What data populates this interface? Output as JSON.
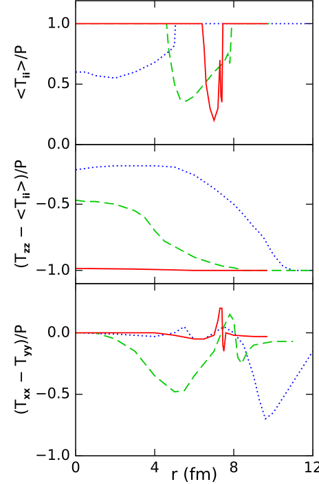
{
  "chart_data": [
    {
      "type": "line",
      "ylabel": [
        "<T",
        "ii",
        ">/P"
      ],
      "xlim": [
        0,
        12
      ],
      "xticks": [
        0,
        4,
        8,
        12
      ],
      "ylim": [
        0,
        1.19
      ],
      "yticks": [
        {
          "value": 1,
          "label": "1.0"
        },
        {
          "value": 0.5,
          "label": "0.5"
        },
        {
          "value": 0,
          "label": "0.0"
        }
      ],
      "series": [
        {
          "color": "#0000ff",
          "style": "dotted",
          "x": [
            0,
            0.5,
            1,
            2,
            3,
            4,
            4.8,
            5,
            5.05,
            8,
            12
          ],
          "values": [
            0.6,
            0.6,
            0.57,
            0.55,
            0.6,
            0.68,
            0.78,
            0.82,
            1.0,
            1.0,
            1.0
          ]
        },
        {
          "color": "#00cc00",
          "style": "dashed",
          "x": [
            0,
            4.6,
            4.7,
            5,
            5.3,
            5.6,
            6,
            6.5,
            7,
            7.5,
            7.7,
            7.8,
            7.9,
            9.8
          ],
          "values": [
            1.0,
            1.0,
            0.8,
            0.5,
            0.37,
            0.36,
            0.4,
            0.5,
            0.6,
            0.68,
            0.75,
            0.67,
            1.0,
            1.0
          ]
        },
        {
          "color": "#ff0000",
          "style": "solid",
          "x": [
            0,
            6.4,
            6.5,
            6.6,
            6.8,
            7.0,
            7.2,
            7.3,
            7.35,
            7.4,
            7.45,
            9.7
          ],
          "values": [
            1.0,
            1.0,
            0.8,
            0.5,
            0.3,
            0.2,
            0.3,
            0.7,
            0.4,
            0.35,
            1.0,
            1.0
          ]
        }
      ]
    },
    {
      "type": "line",
      "ylabel": [
        "(T",
        "zz",
        " − <T",
        "ii",
        ">)/P"
      ],
      "xlim": [
        0,
        12
      ],
      "xticks": [
        0,
        4,
        8,
        12
      ],
      "ylim": [
        -1.1,
        -0.05
      ],
      "yticks": [
        {
          "value": -0.5,
          "label": "−0.5"
        },
        {
          "value": -1,
          "label": "−1.0"
        }
      ],
      "series": [
        {
          "color": "#0000ff",
          "style": "dotted",
          "x": [
            0,
            1,
            2,
            4,
            5,
            6,
            7,
            8,
            8.5,
            9,
            9.2,
            9.5,
            10,
            10.5,
            11,
            12
          ],
          "values": [
            -0.24,
            -0.22,
            -0.21,
            -0.21,
            -0.22,
            -0.28,
            -0.38,
            -0.5,
            -0.58,
            -0.67,
            -0.7,
            -0.75,
            -0.88,
            -0.97,
            -1.0,
            -1.0
          ]
        },
        {
          "color": "#00cc00",
          "style": "dashed",
          "x": [
            0,
            0.5,
            1,
            2,
            3,
            3.5,
            4,
            4.5,
            5,
            5.5,
            6,
            7,
            7.5,
            8,
            8.5,
            12
          ],
          "values": [
            -0.47,
            -0.48,
            -0.48,
            -0.5,
            -0.55,
            -0.6,
            -0.7,
            -0.78,
            -0.82,
            -0.86,
            -0.9,
            -0.95,
            -0.97,
            -0.98,
            -1.0,
            -1.0
          ]
        },
        {
          "color": "#ff0000",
          "style": "solid",
          "x": [
            0,
            3,
            6,
            9.7
          ],
          "values": [
            -0.985,
            -0.99,
            -1.0,
            -1.0
          ]
        }
      ]
    },
    {
      "type": "line",
      "ylabel": [
        "(T",
        "xx",
        " − T",
        "yy",
        ")/P"
      ],
      "xlabel": "r  (fm)",
      "xlim": [
        0,
        12
      ],
      "xticks": [
        0,
        4,
        8,
        12
      ],
      "ylim": [
        -1,
        0.4
      ],
      "yticks": [
        {
          "value": 0,
          "label": "0.0"
        },
        {
          "value": -0.5,
          "label": "−0.5"
        },
        {
          "value": -1,
          "label": "−1.0"
        }
      ],
      "series": [
        {
          "color": "#0000ff",
          "style": "dotted",
          "x": [
            0,
            2,
            4,
            5,
            5.5,
            5.8,
            6,
            6.5,
            7,
            7.5,
            8,
            8.5,
            9,
            9.3,
            9.6,
            10,
            11,
            12
          ],
          "values": [
            0,
            -0.01,
            -0.03,
            0,
            0.05,
            -0.02,
            -0.05,
            -0.05,
            0,
            0.05,
            0,
            -0.1,
            -0.35,
            -0.55,
            -0.7,
            -0.65,
            -0.4,
            -0.15
          ]
        },
        {
          "color": "#00cc00",
          "style": "dashed",
          "x": [
            0,
            1,
            2,
            3,
            4,
            5,
            5.5,
            6,
            7,
            7.5,
            7.8,
            8,
            8.2,
            8.4,
            8.7,
            9,
            10,
            11
          ],
          "values": [
            0,
            0,
            -0.05,
            -0.15,
            -0.35,
            -0.48,
            -0.47,
            -0.35,
            -0.15,
            0.05,
            0.15,
            0.1,
            -0.2,
            -0.25,
            -0.15,
            -0.1,
            -0.07,
            -0.07
          ]
        },
        {
          "color": "#ff0000",
          "style": "solid",
          "x": [
            0,
            2,
            4,
            5,
            6,
            6.5,
            7,
            7.2,
            7.3,
            7.4,
            7.45,
            7.5,
            7.6,
            8,
            9,
            9.7
          ],
          "values": [
            0,
            0,
            0,
            -0.02,
            -0.05,
            -0.05,
            -0.02,
            0.1,
            0.2,
            0.2,
            -0.1,
            -0.15,
            0,
            -0.02,
            -0.03,
            -0.03
          ]
        }
      ]
    }
  ]
}
